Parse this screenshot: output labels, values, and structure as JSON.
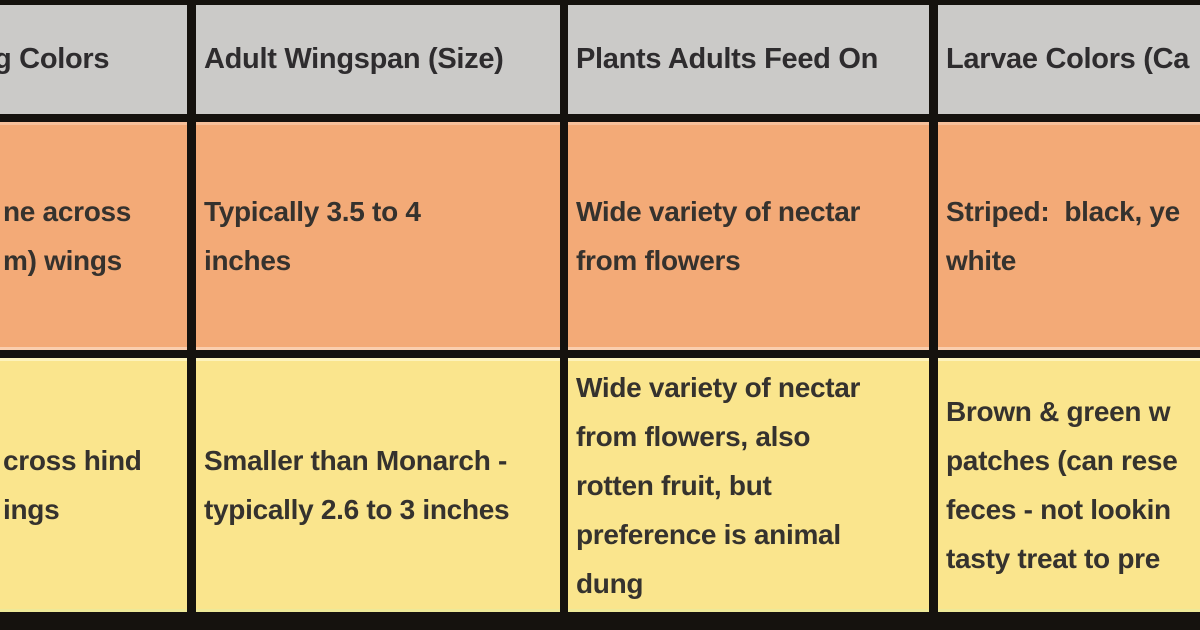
{
  "table": {
    "headers": {
      "colors": "g Colors",
      "wingspan": "Adult Wingspan (Size)",
      "food": "Plants Adults Feed On",
      "larvae": "Larvae Colors (Ca"
    },
    "rows": [
      {
        "colors": "ne across\nm) wings",
        "wingspan": "Typically 3.5 to 4\ninches",
        "food": "Wide variety of nectar\nfrom flowers",
        "larvae": "Striped:  black, ye\nwhite"
      },
      {
        "colors": "cross hind\nings",
        "wingspan": "Smaller than Monarch -\ntypically 2.6 to 3 inches",
        "food": "Wide variety of nectar\nfrom flowers, also\nrotten fruit, but\npreference is animal\ndung",
        "larvae": "Brown & green w\npatches (can rese\nfeces - not lookin\ntasty treat to pre"
      }
    ],
    "colors": {
      "header_bg": "#cbcac8",
      "row1_bg": "#f3aa77",
      "row2_bg": "#fae58d",
      "border": "#15120e",
      "text": "#35322e"
    }
  }
}
